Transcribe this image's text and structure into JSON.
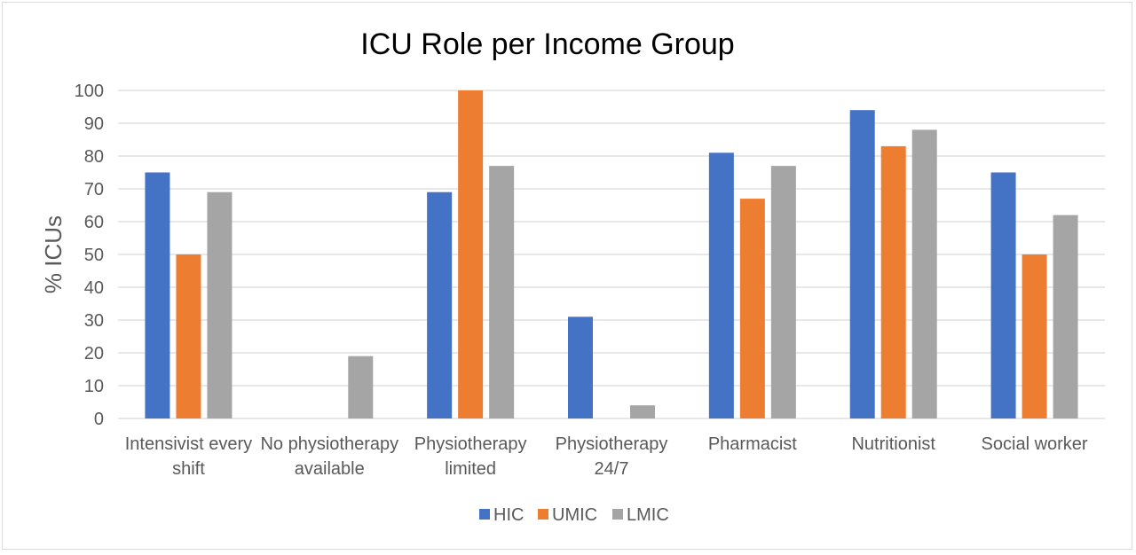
{
  "chart_data": {
    "type": "bar",
    "title": "ICU Role per Income Group",
    "ylabel": "% ICUs",
    "xlabel": "",
    "ylim": [
      0,
      100
    ],
    "yticks": [
      0,
      10,
      20,
      30,
      40,
      50,
      60,
      70,
      80,
      90,
      100
    ],
    "grid": true,
    "legend_position": "bottom",
    "categories": [
      [
        "Intensivist every",
        "shift"
      ],
      [
        "No physiotherapy",
        "available"
      ],
      [
        "Physiotherapy",
        "limited"
      ],
      [
        "Physiotherapy",
        "24/7"
      ],
      [
        "Pharmacist"
      ],
      [
        "Nutritionist"
      ],
      [
        "Social worker"
      ]
    ],
    "series": [
      {
        "name": "HIC",
        "color": "#4472c4",
        "values": [
          75,
          0,
          69,
          31,
          81,
          94,
          75
        ]
      },
      {
        "name": "UMIC",
        "color": "#ed7d31",
        "values": [
          50,
          0,
          100,
          0,
          67,
          83,
          50
        ]
      },
      {
        "name": "LMIC",
        "color": "#a5a5a5",
        "values": [
          69,
          19,
          77,
          4,
          77,
          88,
          62
        ]
      }
    ]
  }
}
